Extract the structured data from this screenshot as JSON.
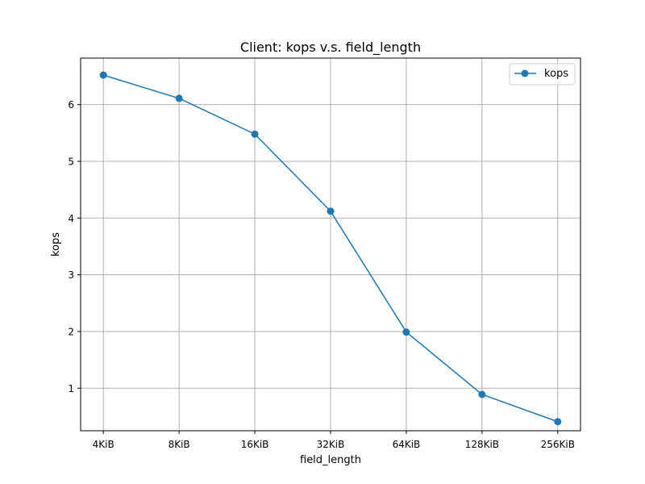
{
  "chart_data": {
    "type": "line",
    "title": "Client: kops v.s. field_length",
    "xlabel": "field_length",
    "ylabel": "kops",
    "categories": [
      "4KiB",
      "8KiB",
      "16KiB",
      "32KiB",
      "64KiB",
      "128KiB",
      "256KiB"
    ],
    "series": [
      {
        "name": "kops",
        "values": [
          6.52,
          6.11,
          5.48,
          4.12,
          1.99,
          0.89,
          0.41
        ],
        "color": "#1f77b4",
        "marker": "circle"
      }
    ],
    "ylim": [
      0.25,
      6.82
    ],
    "yticks": [
      1,
      2,
      3,
      4,
      5,
      6
    ],
    "grid": true,
    "legend": "top-right"
  }
}
